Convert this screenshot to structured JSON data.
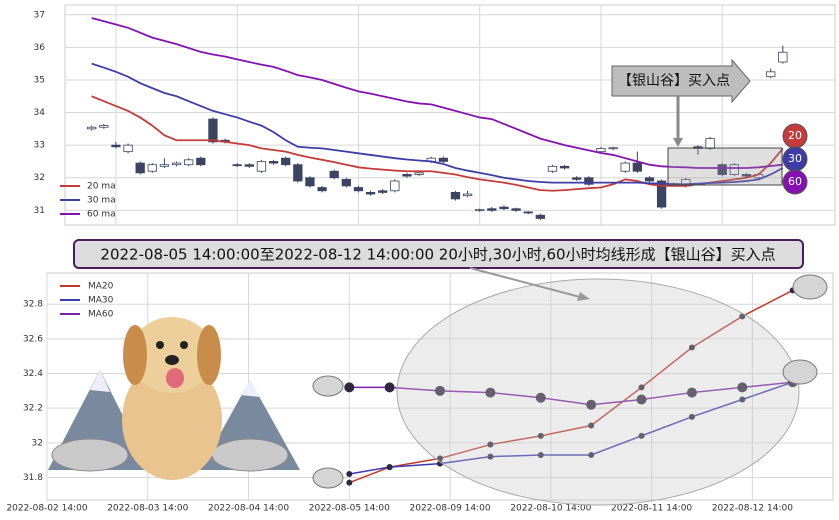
{
  "chart_data": [
    {
      "type": "candlestick",
      "xlim": [
        -2.2,
        61.3
      ],
      "ylim": [
        30.55,
        37.3
      ],
      "yticks": [
        31,
        32,
        33,
        34,
        35,
        36,
        37
      ],
      "grid": true,
      "legend": "lower left",
      "up_color": "#ffffff",
      "down_color": "#3b4463",
      "edge_color": "#3b4463",
      "open": [
        33.5,
        33.55,
        33.0,
        32.8,
        32.45,
        32.2,
        32.35,
        32.4,
        32.4,
        32.6,
        33.8,
        33.15,
        32.4,
        32.4,
        32.2,
        32.5,
        32.6,
        32.4,
        32.0,
        31.7,
        32.2,
        31.95,
        31.7,
        31.55,
        31.6,
        31.6,
        32.1,
        32.1,
        32.5,
        32.6,
        31.55,
        31.45,
        31.0,
        31.05,
        31.1,
        31.05,
        30.95,
        30.85,
        32.2,
        32.35,
        32.0,
        32.0,
        32.8,
        32.9,
        32.2,
        32.45,
        32.0,
        31.9,
        31.8,
        31.75,
        32.95,
        32.9,
        32.4,
        32.1,
        32.1,
        32.0,
        35.1,
        35.55
      ],
      "close": [
        33.55,
        33.6,
        32.95,
        33.0,
        32.15,
        32.4,
        32.4,
        32.45,
        32.55,
        32.4,
        33.1,
        33.1,
        32.38,
        32.35,
        32.5,
        32.45,
        32.4,
        31.9,
        31.75,
        31.6,
        32.0,
        31.75,
        31.6,
        31.5,
        31.55,
        31.9,
        32.05,
        32.15,
        32.6,
        32.5,
        31.35,
        31.5,
        31.02,
        31.0,
        31.05,
        31.0,
        30.93,
        30.75,
        32.35,
        32.3,
        31.95,
        31.8,
        32.9,
        32.92,
        32.45,
        32.2,
        31.9,
        31.1,
        31.82,
        31.95,
        32.9,
        33.2,
        32.1,
        32.4,
        32.05,
        32.1,
        35.25,
        35.85
      ],
      "high": [
        33.6,
        33.65,
        33.1,
        33.05,
        32.5,
        32.45,
        32.6,
        32.5,
        32.6,
        32.65,
        33.85,
        33.2,
        32.45,
        32.45,
        32.55,
        32.55,
        32.65,
        32.45,
        32.05,
        31.75,
        32.25,
        32.0,
        31.75,
        31.6,
        31.65,
        31.95,
        32.15,
        32.2,
        32.65,
        32.65,
        31.6,
        31.6,
        31.05,
        31.1,
        31.15,
        31.08,
        30.98,
        30.9,
        32.4,
        32.4,
        32.05,
        32.05,
        32.95,
        32.95,
        32.5,
        32.8,
        32.05,
        31.95,
        31.85,
        32.0,
        33.0,
        33.25,
        32.45,
        32.45,
        32.15,
        32.15,
        35.35,
        36.05
      ],
      "low": [
        33.45,
        33.5,
        32.9,
        32.75,
        32.1,
        32.15,
        32.3,
        32.35,
        32.35,
        32.35,
        33.05,
        33.05,
        32.33,
        32.3,
        32.15,
        32.4,
        32.35,
        31.85,
        31.7,
        31.55,
        31.95,
        31.7,
        31.55,
        31.45,
        31.5,
        31.55,
        32.0,
        32.05,
        32.45,
        32.45,
        31.3,
        31.4,
        30.95,
        30.95,
        31.0,
        30.95,
        30.88,
        30.7,
        32.15,
        32.25,
        31.9,
        31.75,
        32.75,
        32.85,
        32.15,
        32.15,
        31.85,
        31.05,
        31.75,
        31.7,
        32.7,
        32.85,
        32.05,
        32.05,
        32.0,
        31.95,
        35.05,
        35.5
      ],
      "series": [
        {
          "name": "20 ma",
          "tag": "20",
          "color": "#c33b3b",
          "values": [
            34.5,
            34.35,
            34.2,
            34.05,
            33.85,
            33.6,
            33.3,
            33.15,
            33.15,
            33.15,
            33.15,
            33.1,
            33.05,
            33.0,
            32.9,
            32.85,
            32.8,
            32.7,
            32.62,
            32.55,
            32.48,
            32.4,
            32.32,
            32.28,
            32.25,
            32.22,
            32.2,
            32.2,
            32.2,
            32.15,
            32.1,
            32.02,
            31.95,
            31.9,
            31.85,
            31.78,
            31.7,
            31.62,
            31.6,
            31.62,
            31.65,
            31.68,
            31.7,
            31.8,
            31.95,
            31.9,
            31.8,
            31.75,
            31.75,
            31.75,
            31.8,
            31.85,
            31.9,
            31.95,
            32.0,
            32.1,
            32.45,
            32.9
          ]
        },
        {
          "name": "30 ma",
          "tag": "30",
          "color": "#3d3da8",
          "values": [
            35.5,
            35.38,
            35.25,
            35.1,
            34.9,
            34.75,
            34.6,
            34.5,
            34.35,
            34.2,
            34.05,
            33.95,
            33.85,
            33.72,
            33.6,
            33.4,
            33.15,
            32.95,
            32.92,
            32.9,
            32.85,
            32.8,
            32.75,
            32.7,
            32.65,
            32.6,
            32.56,
            32.53,
            32.5,
            32.42,
            32.3,
            32.22,
            32.15,
            32.08,
            32.0,
            31.95,
            31.9,
            31.87,
            31.85,
            31.85,
            31.85,
            31.85,
            31.85,
            31.85,
            31.85,
            31.85,
            31.83,
            31.82,
            31.8,
            31.8,
            31.82,
            31.84,
            31.85,
            31.87,
            31.9,
            31.95,
            32.1,
            32.3
          ]
        },
        {
          "name": "60 ma",
          "tag": "60",
          "color": "#8412b0",
          "values": [
            36.9,
            36.8,
            36.7,
            36.6,
            36.45,
            36.3,
            36.2,
            36.1,
            35.98,
            35.86,
            35.78,
            35.72,
            35.63,
            35.55,
            35.47,
            35.4,
            35.28,
            35.15,
            35.08,
            35.0,
            34.88,
            34.76,
            34.65,
            34.58,
            34.5,
            34.42,
            34.34,
            34.28,
            34.25,
            34.15,
            34.05,
            33.95,
            33.85,
            33.8,
            33.65,
            33.5,
            33.35,
            33.2,
            33.1,
            33.0,
            32.92,
            32.84,
            32.76,
            32.7,
            32.6,
            32.5,
            32.4,
            32.35,
            32.33,
            32.32,
            32.3,
            32.3,
            32.3,
            32.3,
            32.3,
            32.32,
            32.36,
            32.4
          ]
        }
      ],
      "annotation": "【银山谷】买入点"
    },
    {
      "type": "line",
      "title": "2022-08-05 14:00:00至2022-08-12 14:00:00 20小时,30小时,60小时均线形成【银山谷】买入点",
      "xlim": [
        0,
        7.8
      ],
      "ylim": [
        31.67,
        32.98
      ],
      "yticks": [
        31.8,
        32.0,
        32.2,
        32.4,
        32.6,
        32.8
      ],
      "grid": true,
      "legend": "upper left",
      "xticks": [
        {
          "value": 0,
          "label": "2022-08-02 14:00"
        },
        {
          "value": 1,
          "label": "2022-08-03 14:00"
        },
        {
          "value": 2,
          "label": "2022-08-04 14:00"
        },
        {
          "value": 3,
          "label": "2022-08-05 14:00"
        },
        {
          "value": 4,
          "label": "2022-08-09 14:00"
        },
        {
          "value": 5,
          "label": "2022-08-10 14:00"
        },
        {
          "value": 6,
          "label": "2022-08-11 14:00"
        },
        {
          "value": 7,
          "label": "2022-08-12 14:00"
        }
      ],
      "x": [
        3.0,
        3.4,
        3.9,
        4.4,
        4.9,
        5.4,
        5.9,
        6.4,
        6.9,
        7.4
      ],
      "series": [
        {
          "name": "MA20",
          "color": "#c0392b",
          "values": [
            31.77,
            31.86,
            31.91,
            31.99,
            32.04,
            32.1,
            32.32,
            32.55,
            32.73,
            32.88
          ]
        },
        {
          "name": "MA30",
          "color": "#3b3bb0",
          "values": [
            31.82,
            31.86,
            31.88,
            31.92,
            31.93,
            31.93,
            32.04,
            32.15,
            32.25,
            32.35
          ]
        },
        {
          "name": "MA60",
          "color": "#7a1fa8",
          "values": [
            32.32,
            32.32,
            32.3,
            32.29,
            32.26,
            32.22,
            32.25,
            32.29,
            32.32,
            32.35
          ]
        }
      ]
    }
  ]
}
